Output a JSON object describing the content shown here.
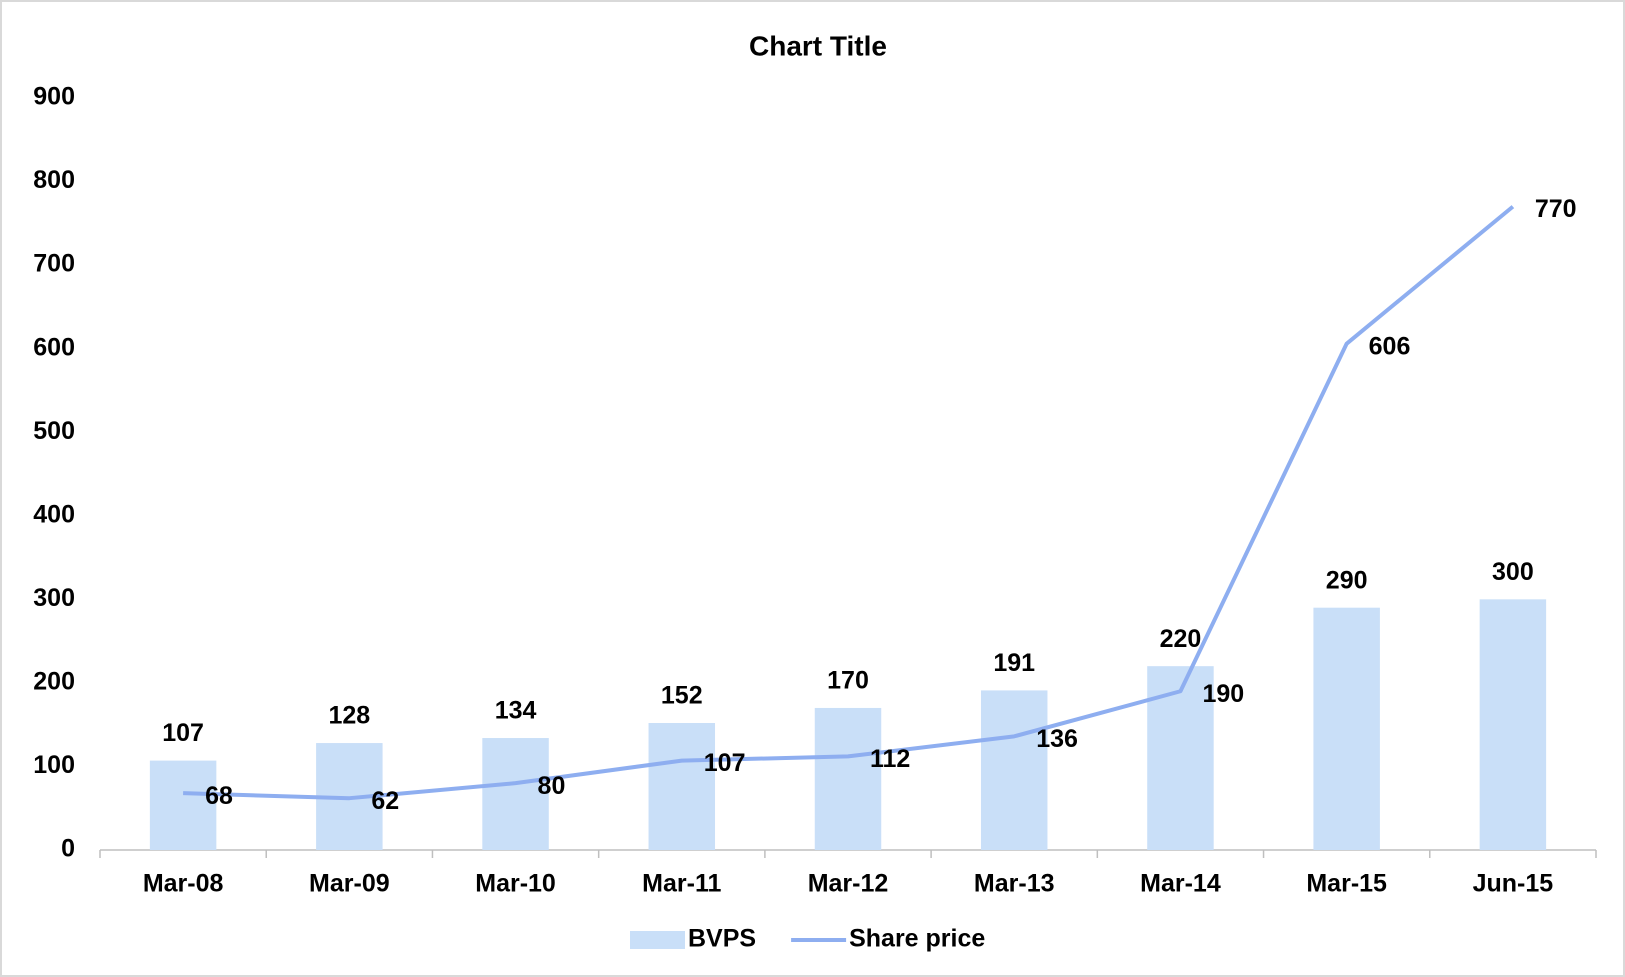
{
  "chart_data": {
    "type": "bar",
    "title": "Chart Title",
    "categories": [
      "Mar-08",
      "Mar-09",
      "Mar-10",
      "Mar-11",
      "Mar-12",
      "Mar-13",
      "Mar-14",
      "Mar-15",
      "Jun-15"
    ],
    "series": [
      {
        "name": "BVPS",
        "type": "bar",
        "color": "#c9dff8",
        "values": [
          107,
          128,
          134,
          152,
          170,
          191,
          220,
          290,
          300
        ]
      },
      {
        "name": "Share price",
        "type": "line",
        "color": "#8eaef0",
        "values": [
          68,
          62,
          80,
          107,
          112,
          136,
          190,
          606,
          770
        ]
      }
    ],
    "ylim": [
      0,
      900
    ],
    "yticks": [
      0,
      100,
      200,
      300,
      400,
      500,
      600,
      700,
      800,
      900
    ],
    "grid": false,
    "legend": "bottom"
  }
}
